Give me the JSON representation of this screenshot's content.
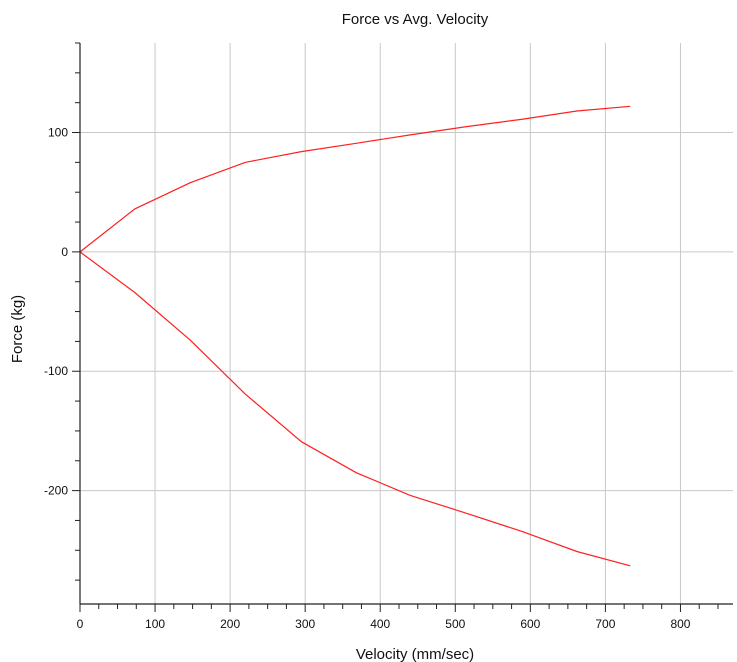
{
  "chart_data": {
    "type": "line",
    "title": "Force vs Avg. Velocity",
    "xlabel": "Velocity (mm/sec)",
    "ylabel": "Force (kg)",
    "xlim": [
      0,
      870
    ],
    "ylim": [
      -295,
      175
    ],
    "x_ticks": [
      0,
      100,
      200,
      300,
      400,
      500,
      600,
      700,
      800
    ],
    "y_ticks": [
      -200,
      -100,
      0,
      100
    ],
    "grid": true,
    "line_color": "#ff2020",
    "series": [
      {
        "values_x": [
          0,
          73,
          147,
          220,
          295,
          368,
          440,
          515,
          588,
          662,
          733
        ],
        "values_y": [
          0,
          36,
          58,
          75,
          84,
          91,
          98,
          105,
          111,
          118,
          122
        ]
      },
      {
        "values_x": [
          0,
          73,
          147,
          220,
          295,
          368,
          440,
          515,
          588,
          662,
          733
        ],
        "values_y": [
          0,
          -34,
          -74,
          -119,
          -159,
          -185,
          -204,
          -219,
          -234,
          -251,
          -263
        ]
      }
    ]
  }
}
